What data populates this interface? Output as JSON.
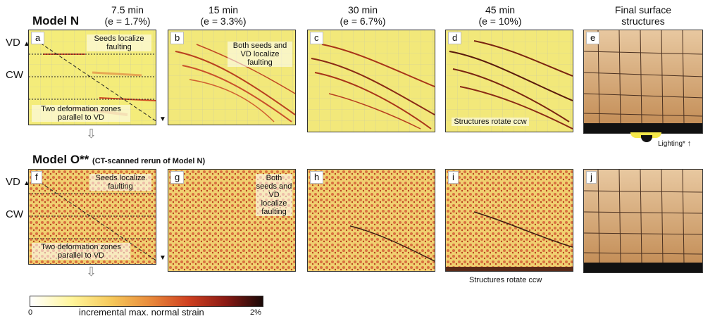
{
  "columns": [
    {
      "line1": "7.5 min",
      "line2": "(e = 1.7%)"
    },
    {
      "line1": "15 min",
      "line2": "(e = 3.3%)"
    },
    {
      "line1": "30 min",
      "line2": "(e = 6.7%)"
    },
    {
      "line1": "45 min",
      "line2": "(e = 10%)"
    },
    {
      "line1": "Final surface",
      "line2": "structures"
    }
  ],
  "rows": {
    "top": {
      "title": "Model N",
      "subtitle": ""
    },
    "bottom": {
      "title": "Model O**",
      "subtitle": "(CT-scanned rerun of Model N)"
    }
  },
  "side_labels": {
    "vd": "VD",
    "cw": "CW"
  },
  "panels_top": [
    "a",
    "b",
    "c",
    "d",
    "e"
  ],
  "panels_bottom": [
    "f",
    "g",
    "h",
    "i",
    "j"
  ],
  "annotations": {
    "seeds": "Seeds localize faulting",
    "two_zones": "Two deformation zones parallel to VD",
    "both_b": "Both seeds and VD localize faulting",
    "both_g": "Both seeds and VD localize faulting",
    "rotate_d": "Structures rotate ccw",
    "rotate_i": "Structures rotate ccw",
    "lighting": "Lighting*"
  },
  "colorbar": {
    "min": "0",
    "label": "incremental max. normal strain",
    "max": "2%"
  },
  "colors": {
    "strain_low": "#fff59a",
    "strain_high": "#1a0a08",
    "final_surface": "#c99a66"
  }
}
